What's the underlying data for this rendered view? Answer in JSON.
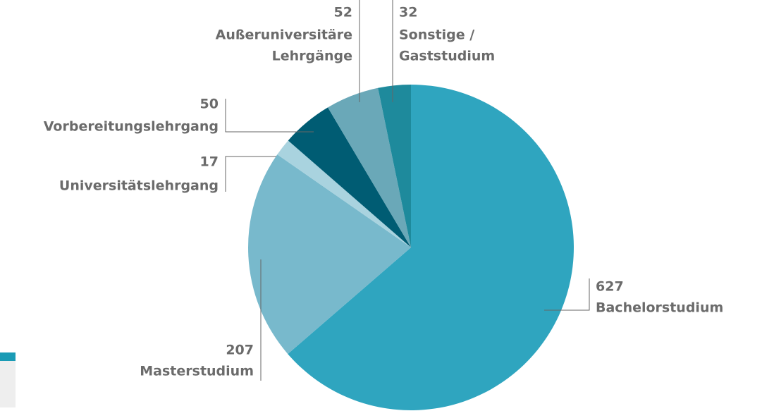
{
  "chart_data": {
    "type": "pie",
    "categories": [
      [
        "Bachelorstudium"
      ],
      [
        "Masterstudium"
      ],
      [
        "Universitätslehrgang"
      ],
      [
        "Vorbereitungslehrgang"
      ],
      [
        "Außeruniversitäre",
        "Lehrgänge"
      ],
      [
        "Sonstige /",
        "Gaststudium"
      ]
    ],
    "values": [
      627,
      207,
      17,
      50,
      52,
      32
    ],
    "colors": [
      "#2fa5bf",
      "#78b9cc",
      "#a9d3df",
      "#005c73",
      "#6aa8b8",
      "#1e8a9c"
    ]
  }
}
